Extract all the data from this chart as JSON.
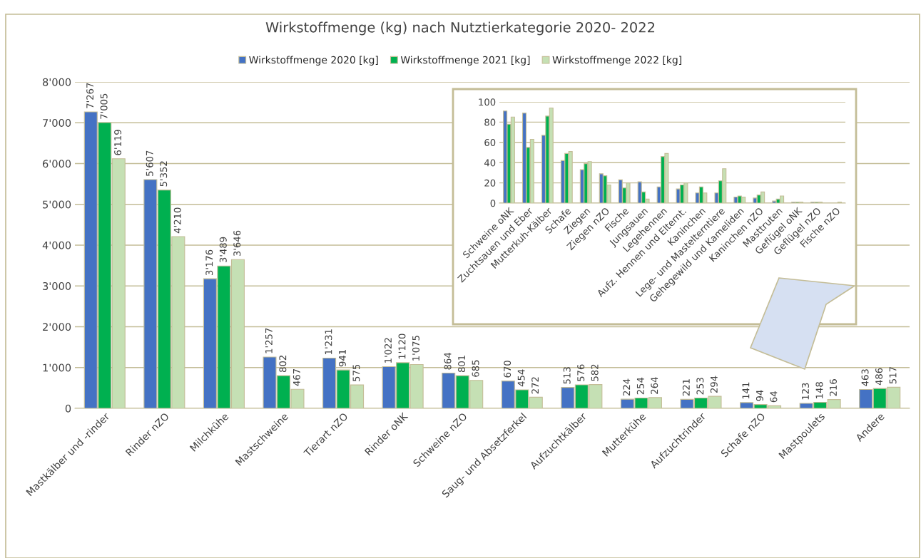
{
  "chart_data": [
    {
      "type": "bar",
      "title": "Wirkstoffmenge (kg) nach Nutztierkategorie 2020- 2022",
      "categories": [
        "Mastkälber und -rinder",
        "Rinder nZO",
        "Milchkühe",
        "Mastschweine",
        "Tierart nZO",
        "Rinder oNK",
        "Schweine nZO",
        "Saug- und Absetzferkel",
        "Aufzuchtkälber",
        "Mutterkühe",
        "Aufzuchtrinder",
        "Schafe nZO",
        "Mastpoulets",
        "Andere"
      ],
      "series": [
        {
          "name": "Wirkstoffmenge 2020 [kg]",
          "color": "#4472c4",
          "values": [
            7267,
            5607,
            3176,
            1257,
            1231,
            1022,
            864,
            670,
            513,
            224,
            221,
            141,
            123,
            463
          ],
          "value_labels": [
            "7'267",
            "5'607",
            "3'176",
            "1'257",
            "1'231",
            "1'022",
            "864",
            "670",
            "513",
            "224",
            "221",
            "141",
            "123",
            "463"
          ]
        },
        {
          "name": "Wirkstoffmenge 2021 [kg]",
          "color": "#00b050",
          "values": [
            7005,
            5352,
            3489,
            802,
            941,
            1120,
            801,
            454,
            576,
            254,
            253,
            94,
            148,
            486
          ],
          "value_labels": [
            "7'005",
            "5'352",
            "3'489",
            "802",
            "941",
            "1'120",
            "801",
            "454",
            "576",
            "254",
            "253",
            "94",
            "148",
            "486"
          ]
        },
        {
          "name": "Wirkstoffmenge 2022 [kg]",
          "color": "#c5e0b4",
          "values": [
            6119,
            4210,
            3646,
            467,
            575,
            1075,
            685,
            272,
            582,
            264,
            294,
            64,
            216,
            517
          ],
          "value_labels": [
            "6'119",
            "4'210",
            "3'646",
            "467",
            "575",
            "1'075",
            "685",
            "272",
            "582",
            "264",
            "294",
            "64",
            "216",
            "517"
          ]
        }
      ],
      "ylim": [
        0,
        8000
      ],
      "yticks": [
        {
          "value": 0,
          "label": "0"
        },
        {
          "value": 1000,
          "label": "1'000"
        },
        {
          "value": 2000,
          "label": "2'000"
        },
        {
          "value": 3000,
          "label": "3'000"
        },
        {
          "value": 4000,
          "label": "4'000"
        },
        {
          "value": 5000,
          "label": "5'000"
        },
        {
          "value": 6000,
          "label": "6'000"
        },
        {
          "value": 7000,
          "label": "7'000"
        },
        {
          "value": 8000,
          "label": "8'000"
        }
      ],
      "grid": "y",
      "legend": "top"
    },
    {
      "type": "bar",
      "categories": [
        "Schweine oNK",
        "Zuchtsauen und Eber",
        "Mutterkuh-Kälber",
        "Schafe",
        "Ziegen",
        "Ziegen nZO",
        "Fische",
        "Jungsauen",
        "Legehennen",
        "Aufz. Hennen und Elternt.",
        "Kaninchen",
        "Lege- und Mastelterntiere",
        "Gehegewild und Kameliden",
        "Kaninchen nZO",
        "Masttruten",
        "Geflügel oNK",
        "Geflügel nZO",
        "Fische nZO"
      ],
      "series": [
        {
          "color": "#4472c4",
          "values": [
            91,
            89,
            67,
            42,
            33,
            29,
            23,
            21,
            16,
            14,
            10,
            10,
            6,
            5,
            2,
            1,
            1,
            null
          ]
        },
        {
          "color": "#00b050",
          "values": [
            78,
            55,
            86,
            49,
            39,
            27,
            15,
            11,
            46,
            18,
            16,
            22,
            7,
            8,
            4,
            1,
            1,
            null
          ]
        },
        {
          "color": "#c5e0b4",
          "values": [
            85,
            63,
            94,
            51,
            41,
            18,
            20,
            4,
            49,
            20,
            10,
            34,
            6,
            11,
            7,
            1,
            1,
            1
          ]
        }
      ],
      "ylim": [
        0,
        100
      ],
      "yticks": [
        0,
        20,
        40,
        60,
        80,
        100
      ],
      "grid": "y"
    }
  ]
}
